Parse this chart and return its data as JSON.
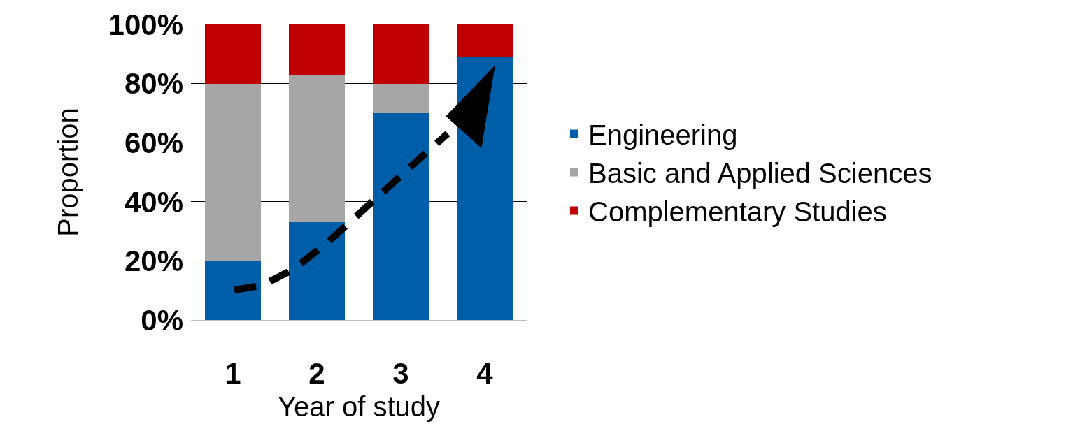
{
  "chart_data": {
    "type": "bar",
    "stacked": true,
    "xlabel": "Year of study",
    "ylabel": "Proportion",
    "categories": [
      "1",
      "2",
      "3",
      "4"
    ],
    "series": [
      {
        "name": "Engineering",
        "color": "#005ea8",
        "values": [
          20,
          33,
          70,
          89
        ]
      },
      {
        "name": "Basic and Applied Sciences",
        "color": "#a6a6a6",
        "values": [
          60,
          50,
          10,
          0
        ]
      },
      {
        "name": "Complementary Studies",
        "color": "#c00000",
        "values": [
          20,
          17,
          20,
          11
        ]
      }
    ],
    "ylim": [
      0,
      100
    ],
    "yticks": [
      {
        "value": 0,
        "label": "0%"
      },
      {
        "value": 20,
        "label": "20%"
      },
      {
        "value": 40,
        "label": "40%"
      },
      {
        "value": 60,
        "label": "60%"
      },
      {
        "value": 80,
        "label": "80%"
      },
      {
        "value": 100,
        "label": "100%"
      }
    ],
    "grid": "y",
    "legend": "right"
  }
}
